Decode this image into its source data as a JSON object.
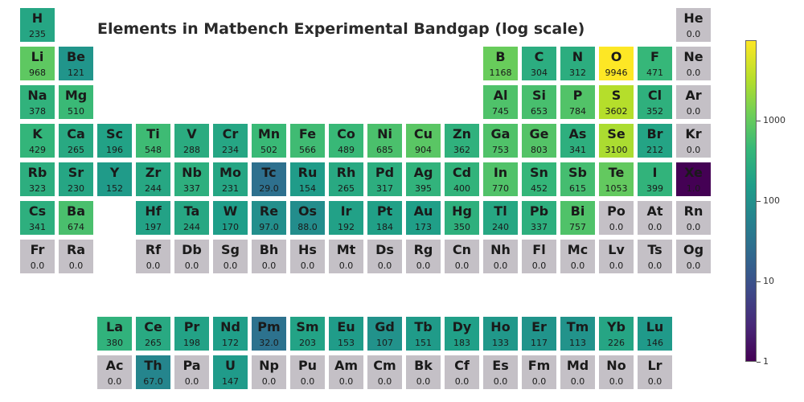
{
  "chart_data": {
    "type": "heatmap",
    "title": "Elements in Matbench Experimental Bandgap (log scale)",
    "scale": "log",
    "colorscale": "viridis",
    "zero_color": "#c4c0c6",
    "colorbar": {
      "range": [
        1,
        10000
      ],
      "ticks": [
        1,
        10,
        100,
        1000
      ],
      "tick_labels": [
        "1",
        "10",
        "100",
        "1000"
      ]
    },
    "elements": [
      {
        "sym": "H",
        "display": "235",
        "value": 235,
        "row": 1,
        "col": 1
      },
      {
        "sym": "He",
        "display": "0.0",
        "value": 0,
        "row": 1,
        "col": 18
      },
      {
        "sym": "Li",
        "display": "968",
        "value": 968,
        "row": 2,
        "col": 1
      },
      {
        "sym": "Be",
        "display": "121",
        "value": 121,
        "row": 2,
        "col": 2
      },
      {
        "sym": "B",
        "display": "1168",
        "value": 1168,
        "row": 2,
        "col": 13
      },
      {
        "sym": "C",
        "display": "304",
        "value": 304,
        "row": 2,
        "col": 14
      },
      {
        "sym": "N",
        "display": "312",
        "value": 312,
        "row": 2,
        "col": 15
      },
      {
        "sym": "O",
        "display": "9946",
        "value": 9946,
        "row": 2,
        "col": 16
      },
      {
        "sym": "F",
        "display": "471",
        "value": 471,
        "row": 2,
        "col": 17
      },
      {
        "sym": "Ne",
        "display": "0.0",
        "value": 0,
        "row": 2,
        "col": 18
      },
      {
        "sym": "Na",
        "display": "378",
        "value": 378,
        "row": 3,
        "col": 1
      },
      {
        "sym": "Mg",
        "display": "510",
        "value": 510,
        "row": 3,
        "col": 2
      },
      {
        "sym": "Al",
        "display": "745",
        "value": 745,
        "row": 3,
        "col": 13
      },
      {
        "sym": "Si",
        "display": "653",
        "value": 653,
        "row": 3,
        "col": 14
      },
      {
        "sym": "P",
        "display": "784",
        "value": 784,
        "row": 3,
        "col": 15
      },
      {
        "sym": "S",
        "display": "3602",
        "value": 3602,
        "row": 3,
        "col": 16
      },
      {
        "sym": "Cl",
        "display": "352",
        "value": 352,
        "row": 3,
        "col": 17
      },
      {
        "sym": "Ar",
        "display": "0.0",
        "value": 0,
        "row": 3,
        "col": 18
      },
      {
        "sym": "K",
        "display": "429",
        "value": 429,
        "row": 4,
        "col": 1
      },
      {
        "sym": "Ca",
        "display": "265",
        "value": 265,
        "row": 4,
        "col": 2
      },
      {
        "sym": "Sc",
        "display": "196",
        "value": 196,
        "row": 4,
        "col": 3
      },
      {
        "sym": "Ti",
        "display": "548",
        "value": 548,
        "row": 4,
        "col": 4
      },
      {
        "sym": "V",
        "display": "288",
        "value": 288,
        "row": 4,
        "col": 5
      },
      {
        "sym": "Cr",
        "display": "234",
        "value": 234,
        "row": 4,
        "col": 6
      },
      {
        "sym": "Mn",
        "display": "502",
        "value": 502,
        "row": 4,
        "col": 7
      },
      {
        "sym": "Fe",
        "display": "566",
        "value": 566,
        "row": 4,
        "col": 8
      },
      {
        "sym": "Co",
        "display": "489",
        "value": 489,
        "row": 4,
        "col": 9
      },
      {
        "sym": "Ni",
        "display": "685",
        "value": 685,
        "row": 4,
        "col": 10
      },
      {
        "sym": "Cu",
        "display": "904",
        "value": 904,
        "row": 4,
        "col": 11
      },
      {
        "sym": "Zn",
        "display": "362",
        "value": 362,
        "row": 4,
        "col": 12
      },
      {
        "sym": "Ga",
        "display": "753",
        "value": 753,
        "row": 4,
        "col": 13
      },
      {
        "sym": "Ge",
        "display": "803",
        "value": 803,
        "row": 4,
        "col": 14
      },
      {
        "sym": "As",
        "display": "341",
        "value": 341,
        "row": 4,
        "col": 15
      },
      {
        "sym": "Se",
        "display": "3100",
        "value": 3100,
        "row": 4,
        "col": 16
      },
      {
        "sym": "Br",
        "display": "212",
        "value": 212,
        "row": 4,
        "col": 17
      },
      {
        "sym": "Kr",
        "display": "0.0",
        "value": 0,
        "row": 4,
        "col": 18
      },
      {
        "sym": "Rb",
        "display": "323",
        "value": 323,
        "row": 5,
        "col": 1
      },
      {
        "sym": "Sr",
        "display": "230",
        "value": 230,
        "row": 5,
        "col": 2
      },
      {
        "sym": "Y",
        "display": "152",
        "value": 152,
        "row": 5,
        "col": 3
      },
      {
        "sym": "Zr",
        "display": "244",
        "value": 244,
        "row": 5,
        "col": 4
      },
      {
        "sym": "Nb",
        "display": "337",
        "value": 337,
        "row": 5,
        "col": 5
      },
      {
        "sym": "Mo",
        "display": "231",
        "value": 231,
        "row": 5,
        "col": 6
      },
      {
        "sym": "Tc",
        "display": "29.0",
        "value": 29,
        "row": 5,
        "col": 7
      },
      {
        "sym": "Ru",
        "display": "154",
        "value": 154,
        "row": 5,
        "col": 8
      },
      {
        "sym": "Rh",
        "display": "265",
        "value": 265,
        "row": 5,
        "col": 9
      },
      {
        "sym": "Pd",
        "display": "317",
        "value": 317,
        "row": 5,
        "col": 10
      },
      {
        "sym": "Ag",
        "display": "395",
        "value": 395,
        "row": 5,
        "col": 11
      },
      {
        "sym": "Cd",
        "display": "400",
        "value": 400,
        "row": 5,
        "col": 12
      },
      {
        "sym": "In",
        "display": "770",
        "value": 770,
        "row": 5,
        "col": 13
      },
      {
        "sym": "Sn",
        "display": "452",
        "value": 452,
        "row": 5,
        "col": 14
      },
      {
        "sym": "Sb",
        "display": "615",
        "value": 615,
        "row": 5,
        "col": 15
      },
      {
        "sym": "Te",
        "display": "1053",
        "value": 1053,
        "row": 5,
        "col": 16
      },
      {
        "sym": "I",
        "display": "399",
        "value": 399,
        "row": 5,
        "col": 17
      },
      {
        "sym": "Xe",
        "display": "1.0",
        "value": 1,
        "row": 5,
        "col": 18
      },
      {
        "sym": "Cs",
        "display": "341",
        "value": 341,
        "row": 6,
        "col": 1
      },
      {
        "sym": "Ba",
        "display": "674",
        "value": 674,
        "row": 6,
        "col": 2
      },
      {
        "sym": "Hf",
        "display": "197",
        "value": 197,
        "row": 6,
        "col": 4
      },
      {
        "sym": "Ta",
        "display": "244",
        "value": 244,
        "row": 6,
        "col": 5
      },
      {
        "sym": "W",
        "display": "170",
        "value": 170,
        "row": 6,
        "col": 6
      },
      {
        "sym": "Re",
        "display": "97.0",
        "value": 97,
        "row": 6,
        "col": 7
      },
      {
        "sym": "Os",
        "display": "88.0",
        "value": 88,
        "row": 6,
        "col": 8
      },
      {
        "sym": "Ir",
        "display": "192",
        "value": 192,
        "row": 6,
        "col": 9
      },
      {
        "sym": "Pt",
        "display": "184",
        "value": 184,
        "row": 6,
        "col": 10
      },
      {
        "sym": "Au",
        "display": "173",
        "value": 173,
        "row": 6,
        "col": 11
      },
      {
        "sym": "Hg",
        "display": "350",
        "value": 350,
        "row": 6,
        "col": 12
      },
      {
        "sym": "Tl",
        "display": "240",
        "value": 240,
        "row": 6,
        "col": 13
      },
      {
        "sym": "Pb",
        "display": "337",
        "value": 337,
        "row": 6,
        "col": 14
      },
      {
        "sym": "Bi",
        "display": "757",
        "value": 757,
        "row": 6,
        "col": 15
      },
      {
        "sym": "Po",
        "display": "0.0",
        "value": 0,
        "row": 6,
        "col": 16
      },
      {
        "sym": "At",
        "display": "0.0",
        "value": 0,
        "row": 6,
        "col": 17
      },
      {
        "sym": "Rn",
        "display": "0.0",
        "value": 0,
        "row": 6,
        "col": 18
      },
      {
        "sym": "Fr",
        "display": "0.0",
        "value": 0,
        "row": 7,
        "col": 1
      },
      {
        "sym": "Ra",
        "display": "0.0",
        "value": 0,
        "row": 7,
        "col": 2
      },
      {
        "sym": "Rf",
        "display": "0.0",
        "value": 0,
        "row": 7,
        "col": 4
      },
      {
        "sym": "Db",
        "display": "0.0",
        "value": 0,
        "row": 7,
        "col": 5
      },
      {
        "sym": "Sg",
        "display": "0.0",
        "value": 0,
        "row": 7,
        "col": 6
      },
      {
        "sym": "Bh",
        "display": "0.0",
        "value": 0,
        "row": 7,
        "col": 7
      },
      {
        "sym": "Hs",
        "display": "0.0",
        "value": 0,
        "row": 7,
        "col": 8
      },
      {
        "sym": "Mt",
        "display": "0.0",
        "value": 0,
        "row": 7,
        "col": 9
      },
      {
        "sym": "Ds",
        "display": "0.0",
        "value": 0,
        "row": 7,
        "col": 10
      },
      {
        "sym": "Rg",
        "display": "0.0",
        "value": 0,
        "row": 7,
        "col": 11
      },
      {
        "sym": "Cn",
        "display": "0.0",
        "value": 0,
        "row": 7,
        "col": 12
      },
      {
        "sym": "Nh",
        "display": "0.0",
        "value": 0,
        "row": 7,
        "col": 13
      },
      {
        "sym": "Fl",
        "display": "0.0",
        "value": 0,
        "row": 7,
        "col": 14
      },
      {
        "sym": "Mc",
        "display": "0.0",
        "value": 0,
        "row": 7,
        "col": 15
      },
      {
        "sym": "Lv",
        "display": "0.0",
        "value": 0,
        "row": 7,
        "col": 16
      },
      {
        "sym": "Ts",
        "display": "0.0",
        "value": 0,
        "row": 7,
        "col": 17
      },
      {
        "sym": "Og",
        "display": "0.0",
        "value": 0,
        "row": 7,
        "col": 18
      },
      {
        "sym": "La",
        "display": "380",
        "value": 380,
        "row": 9,
        "col": 3
      },
      {
        "sym": "Ce",
        "display": "265",
        "value": 265,
        "row": 9,
        "col": 4
      },
      {
        "sym": "Pr",
        "display": "198",
        "value": 198,
        "row": 9,
        "col": 5
      },
      {
        "sym": "Nd",
        "display": "172",
        "value": 172,
        "row": 9,
        "col": 6
      },
      {
        "sym": "Pm",
        "display": "32.0",
        "value": 32,
        "row": 9,
        "col": 7
      },
      {
        "sym": "Sm",
        "display": "203",
        "value": 203,
        "row": 9,
        "col": 8
      },
      {
        "sym": "Eu",
        "display": "153",
        "value": 153,
        "row": 9,
        "col": 9
      },
      {
        "sym": "Gd",
        "display": "107",
        "value": 107,
        "row": 9,
        "col": 10
      },
      {
        "sym": "Tb",
        "display": "151",
        "value": 151,
        "row": 9,
        "col": 11
      },
      {
        "sym": "Dy",
        "display": "183",
        "value": 183,
        "row": 9,
        "col": 12
      },
      {
        "sym": "Ho",
        "display": "133",
        "value": 133,
        "row": 9,
        "col": 13
      },
      {
        "sym": "Er",
        "display": "117",
        "value": 117,
        "row": 9,
        "col": 14
      },
      {
        "sym": "Tm",
        "display": "113",
        "value": 113,
        "row": 9,
        "col": 15
      },
      {
        "sym": "Yb",
        "display": "226",
        "value": 226,
        "row": 9,
        "col": 16
      },
      {
        "sym": "Lu",
        "display": "146",
        "value": 146,
        "row": 9,
        "col": 17
      },
      {
        "sym": "Ac",
        "display": "0.0",
        "value": 0,
        "row": 10,
        "col": 3
      },
      {
        "sym": "Th",
        "display": "67.0",
        "value": 67,
        "row": 10,
        "col": 4
      },
      {
        "sym": "Pa",
        "display": "0.0",
        "value": 0,
        "row": 10,
        "col": 5
      },
      {
        "sym": "U",
        "display": "147",
        "value": 147,
        "row": 10,
        "col": 6
      },
      {
        "sym": "Np",
        "display": "0.0",
        "value": 0,
        "row": 10,
        "col": 7
      },
      {
        "sym": "Pu",
        "display": "0.0",
        "value": 0,
        "row": 10,
        "col": 8
      },
      {
        "sym": "Am",
        "display": "0.0",
        "value": 0,
        "row": 10,
        "col": 9
      },
      {
        "sym": "Cm",
        "display": "0.0",
        "value": 0,
        "row": 10,
        "col": 10
      },
      {
        "sym": "Bk",
        "display": "0.0",
        "value": 0,
        "row": 10,
        "col": 11
      },
      {
        "sym": "Cf",
        "display": "0.0",
        "value": 0,
        "row": 10,
        "col": 12
      },
      {
        "sym": "Es",
        "display": "0.0",
        "value": 0,
        "row": 10,
        "col": 13
      },
      {
        "sym": "Fm",
        "display": "0.0",
        "value": 0,
        "row": 10,
        "col": 14
      },
      {
        "sym": "Md",
        "display": "0.0",
        "value": 0,
        "row": 10,
        "col": 15
      },
      {
        "sym": "No",
        "display": "0.0",
        "value": 0,
        "row": 10,
        "col": 16
      },
      {
        "sym": "Lr",
        "display": "0.0",
        "value": 0,
        "row": 10,
        "col": 17
      }
    ]
  }
}
